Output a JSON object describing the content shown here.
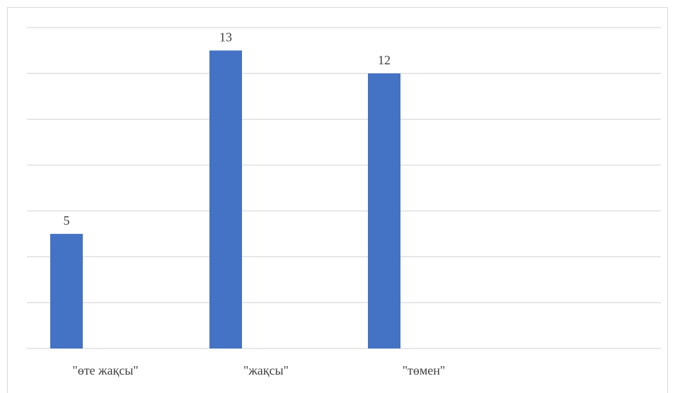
{
  "chart_data": {
    "type": "bar",
    "categories": [
      "\"өте жақсы\"",
      "\"жақсы\"",
      "\"төмен\""
    ],
    "values": [
      5,
      13,
      12
    ],
    "data_labels": [
      "5",
      "13",
      "12"
    ],
    "ylim": [
      0,
      14
    ],
    "grid": true,
    "colors": {
      "bar": "#4472C4",
      "grid": "#D9D9D9",
      "text": "#404040"
    }
  }
}
